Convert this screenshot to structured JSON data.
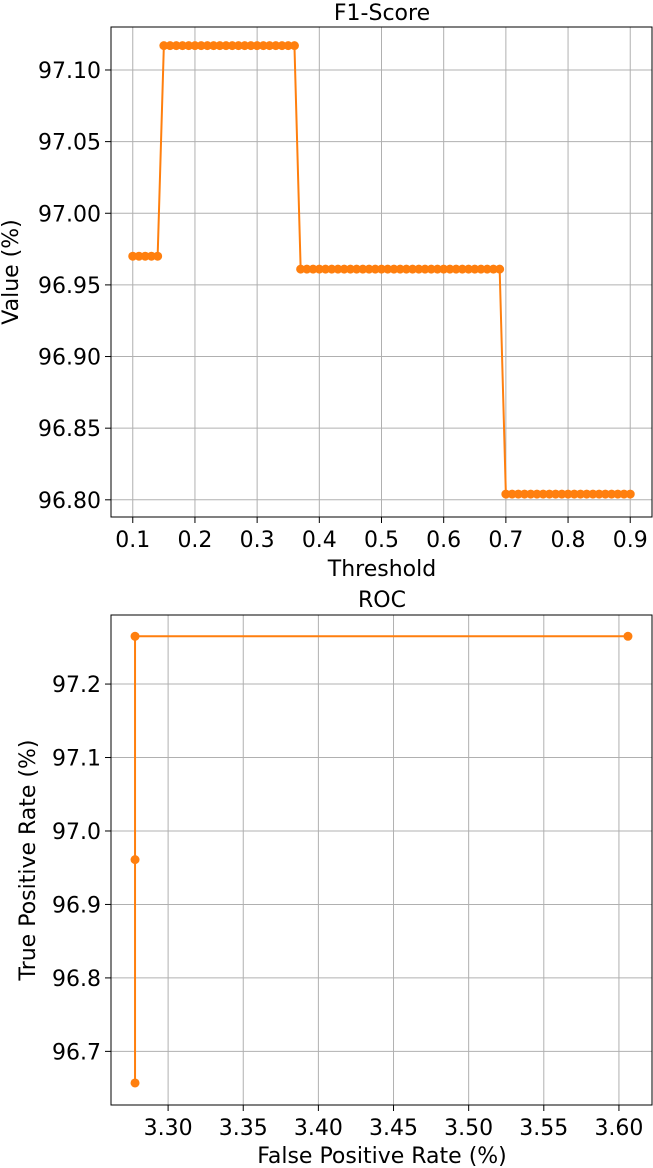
{
  "chart_data": [
    {
      "type": "line",
      "title": "F1-Score",
      "xlabel": "Threshold",
      "ylabel": "Value (%)",
      "xlim": [
        0.065,
        0.935
      ],
      "ylim": [
        96.788,
        97.13
      ],
      "xticks": [
        "0.1",
        "0.2",
        "0.3",
        "0.4",
        "0.5",
        "0.6",
        "0.7",
        "0.8",
        "0.9"
      ],
      "xtick_values": [
        0.1,
        0.2,
        0.3,
        0.4,
        0.5,
        0.6,
        0.7,
        0.8,
        0.9
      ],
      "yticks": [
        "96.80",
        "96.85",
        "96.90",
        "96.95",
        "97.00",
        "97.05",
        "97.10"
      ],
      "ytick_values": [
        96.8,
        96.85,
        96.9,
        96.95,
        97.0,
        97.05,
        97.1
      ],
      "grid": true,
      "color": "#ff7f0e",
      "segments": [
        {
          "from": 0.1,
          "to": 0.14,
          "value": 96.97
        },
        {
          "from": 0.15,
          "to": 0.36,
          "value": 97.117
        },
        {
          "from": 0.37,
          "to": 0.69,
          "value": 96.961
        },
        {
          "from": 0.7,
          "to": 0.9,
          "value": 96.804
        }
      ],
      "x_step": 0.01
    },
    {
      "type": "line",
      "title": "ROC",
      "xlabel": "False Positive Rate (%)",
      "ylabel": "True Positive Rate (%)",
      "xlim": [
        3.262,
        3.622
      ],
      "ylim": [
        96.627,
        97.294
      ],
      "xticks": [
        "3.30",
        "3.35",
        "3.40",
        "3.45",
        "3.50",
        "3.55",
        "3.60"
      ],
      "xtick_values": [
        3.3,
        3.35,
        3.4,
        3.45,
        3.5,
        3.55,
        3.6
      ],
      "yticks": [
        "96.7",
        "96.8",
        "96.9",
        "97.0",
        "97.1",
        "97.2"
      ],
      "ytick_values": [
        96.7,
        96.8,
        96.9,
        97.0,
        97.1,
        97.2
      ],
      "grid": true,
      "color": "#ff7f0e",
      "points": [
        {
          "x": 3.606,
          "y": 97.265
        },
        {
          "x": 3.278,
          "y": 97.265
        },
        {
          "x": 3.278,
          "y": 96.961
        },
        {
          "x": 3.278,
          "y": 96.657
        }
      ]
    }
  ]
}
